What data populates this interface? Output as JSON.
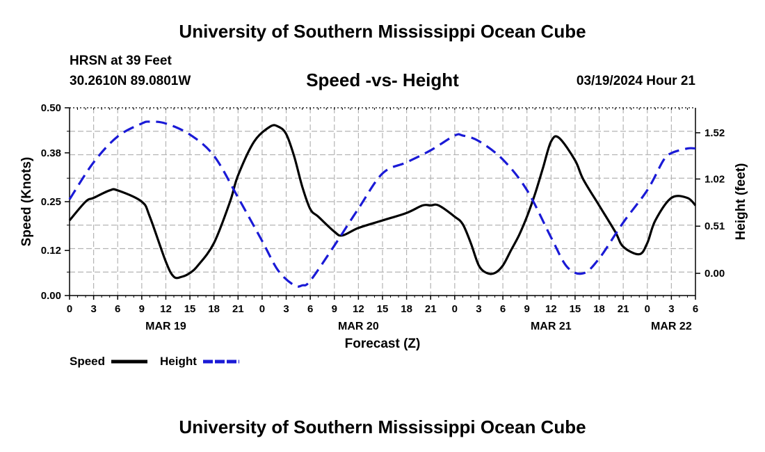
{
  "header": {
    "title": "University of Southern Mississippi Ocean Cube",
    "station": "HRSN at 39 Feet",
    "coords": "30.2610N  89.0801W",
    "subtitle": "Speed -vs- Height",
    "datetime": "03/19/2024 Hour 21"
  },
  "footer": {
    "title": "University of Southern Mississippi Ocean Cube"
  },
  "chart_data": {
    "type": "line",
    "title": "Speed -vs- Height",
    "xlabel": "Forecast (Z)",
    "ylabel": "Speed (Knots)",
    "ylabel_right": "Height (feet)",
    "x_range": [
      0,
      78
    ],
    "ylim": [
      0,
      0.5
    ],
    "ylim_right": [
      -0.24,
      1.79
    ],
    "yticks": [
      0.0,
      0.12,
      0.25,
      0.38,
      0.5
    ],
    "yticks_labels": [
      "0.00",
      "0.12",
      "0.25",
      "0.38",
      "0.50"
    ],
    "yticks_right": [
      0.0,
      0.51,
      1.02,
      1.52
    ],
    "yticks_right_labels": [
      "0.00",
      "0.51",
      "1.02",
      "1.52"
    ],
    "xticks": [
      0,
      3,
      6,
      9,
      12,
      15,
      18,
      21,
      24,
      27,
      30,
      33,
      36,
      39,
      42,
      45,
      48,
      51,
      54,
      57,
      60,
      63,
      66,
      69,
      72,
      75,
      78
    ],
    "xtick_labels": [
      "0",
      "3",
      "6",
      "9",
      "12",
      "15",
      "18",
      "21",
      "0",
      "3",
      "6",
      "9",
      "12",
      "15",
      "18",
      "21",
      "0",
      "3",
      "6",
      "9",
      "12",
      "15",
      "18",
      "21",
      "0",
      "3",
      "6"
    ],
    "day_labels": [
      {
        "x": 12,
        "label": "MAR 19"
      },
      {
        "x": 36,
        "label": "MAR 20"
      },
      {
        "x": 60,
        "label": "MAR 21"
      },
      {
        "x": 75,
        "label": "MAR 22"
      }
    ],
    "grid": true,
    "legend_position": "bottom-left",
    "series": [
      {
        "name": "Speed",
        "axis": "left",
        "color": "#000000",
        "style": "solid",
        "x": [
          0,
          2,
          3,
          5,
          6,
          9,
          10,
          12,
          13,
          14,
          15,
          16,
          18,
          20,
          21,
          23,
          25,
          26,
          27,
          28,
          29,
          30,
          31,
          33,
          34,
          36,
          39,
          42,
          44,
          45,
          46,
          48,
          49,
          50,
          51,
          52,
          53,
          54,
          55,
          56,
          57,
          58,
          59,
          60,
          61,
          63,
          64,
          66,
          68,
          69,
          71,
          72,
          73,
          75,
          77,
          78
        ],
        "values": [
          0.2,
          0.25,
          0.26,
          0.28,
          0.28,
          0.25,
          0.21,
          0.09,
          0.05,
          0.05,
          0.06,
          0.08,
          0.14,
          0.25,
          0.32,
          0.41,
          0.45,
          0.45,
          0.43,
          0.37,
          0.29,
          0.23,
          0.21,
          0.17,
          0.16,
          0.18,
          0.2,
          0.22,
          0.24,
          0.24,
          0.24,
          0.21,
          0.19,
          0.14,
          0.08,
          0.06,
          0.06,
          0.08,
          0.12,
          0.16,
          0.21,
          0.27,
          0.34,
          0.41,
          0.42,
          0.36,
          0.31,
          0.24,
          0.17,
          0.13,
          0.11,
          0.14,
          0.2,
          0.26,
          0.26,
          0.24
        ]
      },
      {
        "name": "Height",
        "axis": "right",
        "color": "#1a1ad6",
        "style": "dashed",
        "x": [
          0,
          3,
          6,
          9,
          10,
          12,
          15,
          18,
          21,
          24,
          26,
          28,
          29,
          30,
          33,
          36,
          39,
          42,
          45,
          48,
          49,
          51,
          54,
          57,
          60,
          62,
          64,
          66,
          69,
          72,
          74,
          75,
          77,
          78
        ],
        "values": [
          0.8,
          1.2,
          1.48,
          1.62,
          1.64,
          1.62,
          1.5,
          1.27,
          0.82,
          0.35,
          0.03,
          -0.13,
          -0.13,
          -0.08,
          0.3,
          0.7,
          1.08,
          1.2,
          1.33,
          1.49,
          1.49,
          1.43,
          1.23,
          0.9,
          0.39,
          0.07,
          0.0,
          0.16,
          0.55,
          0.9,
          1.22,
          1.3,
          1.35,
          1.35
        ]
      }
    ]
  }
}
